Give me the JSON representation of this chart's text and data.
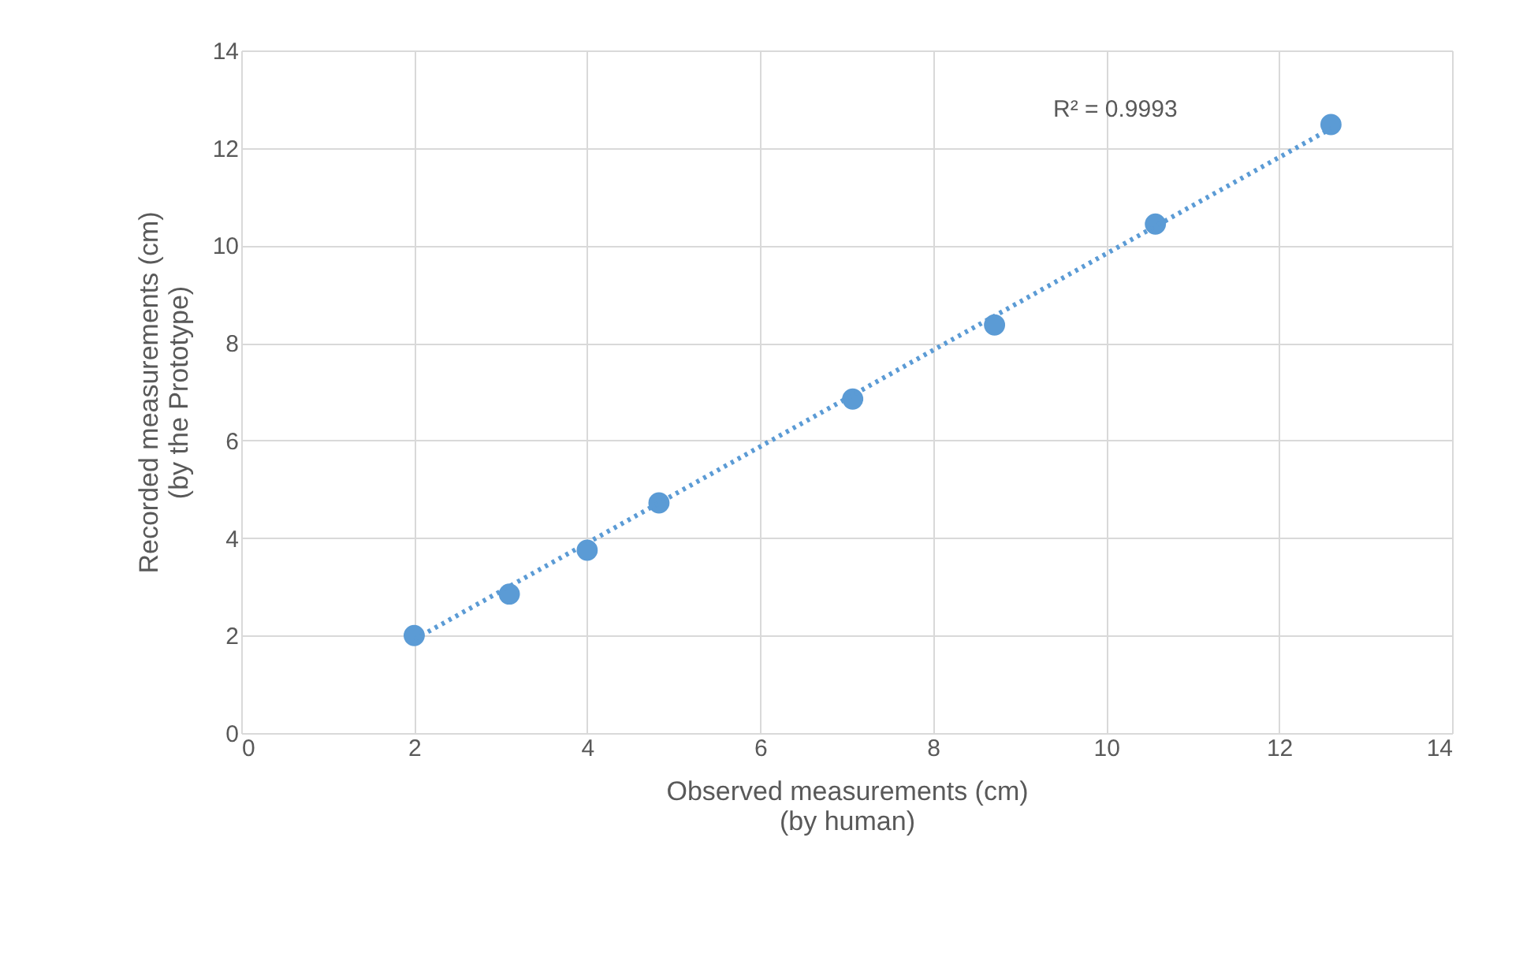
{
  "chart_data": {
    "type": "scatter",
    "xlabel": "Observed measurements (cm)\n(by human)",
    "ylabel": "Recorded measurements (cm)\n(by the Prototype)",
    "series": [
      {
        "color": "#5b9bd5",
        "marker": "circle",
        "x": [
          2.0,
          3.1,
          4.0,
          4.83,
          7.07,
          8.71,
          10.57,
          12.6
        ],
        "values": [
          2.0,
          2.85,
          3.75,
          4.72,
          6.85,
          8.37,
          10.44,
          12.48
        ]
      },
      {
        "type": "line",
        "color": "#5b9bd5",
        "line_style": "dotted",
        "x": [
          2.0,
          12.6
        ],
        "values": [
          1.92,
          12.4
        ]
      }
    ],
    "annotations": [
      "R² = 0.9993"
    ],
    "xlim": [
      0,
      14
    ],
    "xticks": [
      0,
      2,
      4,
      6,
      8,
      10,
      12,
      14
    ],
    "ylim": [
      0,
      14
    ],
    "yticks": [
      0,
      2,
      4,
      6,
      8,
      10,
      12,
      14
    ],
    "grid": true
  }
}
